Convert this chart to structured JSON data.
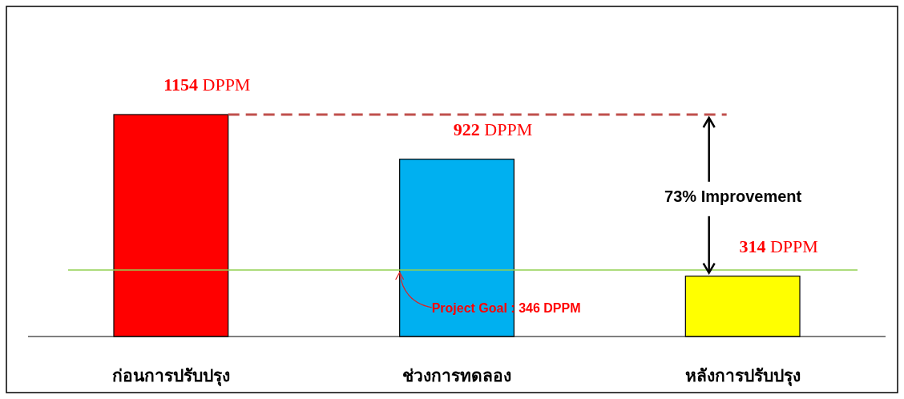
{
  "chart_data": {
    "type": "bar",
    "categories": [
      "ก่อนการปรับปรุง",
      "ช่วงการทดลอง",
      "หลังการปรับปรุง"
    ],
    "values": [
      1154,
      922,
      314
    ],
    "colors": [
      "#ff0000",
      "#00b0f0",
      "#ffff00"
    ],
    "value_labels": [
      "1154 DPPM",
      "922 DPPM",
      "314 DPPM"
    ],
    "ref_lines": [
      {
        "axis": "y",
        "value": 1154,
        "color": "#c0504d",
        "line_style": "dashed"
      },
      {
        "axis": "y",
        "value": 346,
        "label": "Project Goal : 346 DPPM",
        "color": "#92d050",
        "line_style": "solid"
      }
    ],
    "annotations": [
      "73% Improvement"
    ],
    "tick_labels": "x"
  }
}
